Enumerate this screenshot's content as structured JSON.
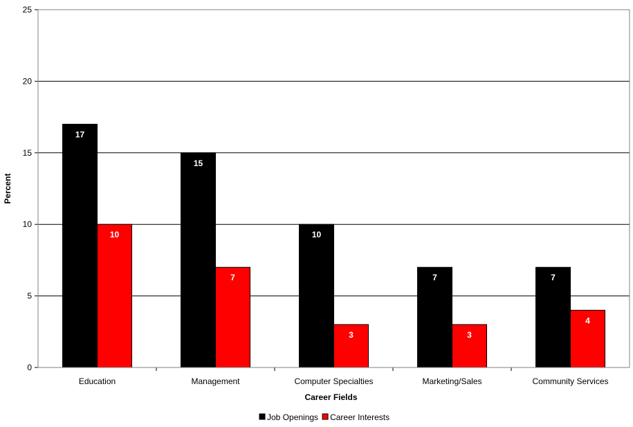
{
  "chart_data": {
    "type": "bar",
    "title": "",
    "xlabel": "Career Fields",
    "ylabel": "Percent",
    "ylim": [
      0,
      25
    ],
    "yticks": [
      0,
      5,
      10,
      15,
      20,
      25
    ],
    "grid": true,
    "legend_position": "bottom",
    "categories": [
      "Education",
      "Management",
      "Computer Specialties",
      "Marketing/Sales",
      "Community Services"
    ],
    "series": [
      {
        "name": "Job Openings",
        "color": "#000000",
        "values": [
          17,
          15,
          10,
          7,
          7
        ]
      },
      {
        "name": "Career Interests",
        "color": "#ff0000",
        "values": [
          10,
          7,
          3,
          3,
          4
        ]
      }
    ]
  }
}
